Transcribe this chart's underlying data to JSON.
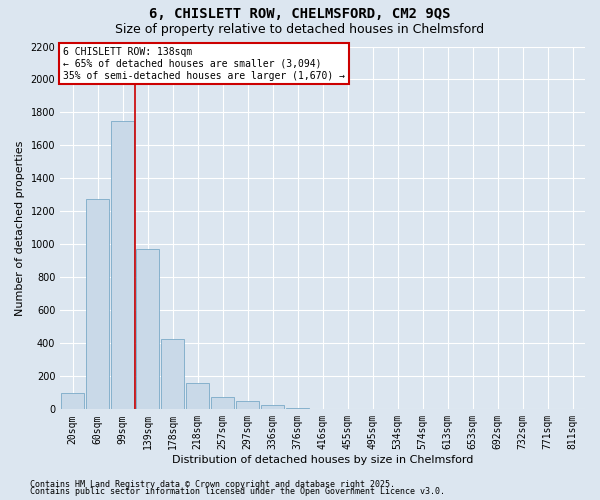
{
  "title_line1": "6, CHISLETT ROW, CHELMSFORD, CM2 9QS",
  "title_line2": "Size of property relative to detached houses in Chelmsford",
  "xlabel": "Distribution of detached houses by size in Chelmsford",
  "ylabel": "Number of detached properties",
  "bar_color": "#c9d9e8",
  "bar_edge_color": "#7aaac8",
  "categories": [
    "20sqm",
    "60sqm",
    "99sqm",
    "139sqm",
    "178sqm",
    "218sqm",
    "257sqm",
    "297sqm",
    "336sqm",
    "376sqm",
    "416sqm",
    "455sqm",
    "495sqm",
    "534sqm",
    "574sqm",
    "613sqm",
    "653sqm",
    "692sqm",
    "732sqm",
    "771sqm",
    "811sqm"
  ],
  "values": [
    100,
    1275,
    1750,
    975,
    425,
    160,
    75,
    50,
    25,
    10,
    5,
    0,
    0,
    0,
    0,
    0,
    0,
    0,
    0,
    0,
    0
  ],
  "ylim": [
    0,
    2200
  ],
  "yticks": [
    0,
    200,
    400,
    600,
    800,
    1000,
    1200,
    1400,
    1600,
    1800,
    2000,
    2200
  ],
  "vline_x": 2.5,
  "vline_color": "#cc0000",
  "annotation_line1": "6 CHISLETT ROW: 138sqm",
  "annotation_line2": "← 65% of detached houses are smaller (3,094)",
  "annotation_line3": "35% of semi-detached houses are larger (1,670) →",
  "annotation_box_color": "#ffffff",
  "annotation_box_edge": "#cc0000",
  "footer_line1": "Contains HM Land Registry data © Crown copyright and database right 2025.",
  "footer_line2": "Contains public sector information licensed under the Open Government Licence v3.0.",
  "background_color": "#dce6f0",
  "plot_bg_color": "#dce6f0",
  "grid_color": "#ffffff",
  "title_fontsize": 10,
  "subtitle_fontsize": 9,
  "axis_label_fontsize": 8,
  "tick_fontsize": 7,
  "annotation_fontsize": 7,
  "footer_fontsize": 6
}
